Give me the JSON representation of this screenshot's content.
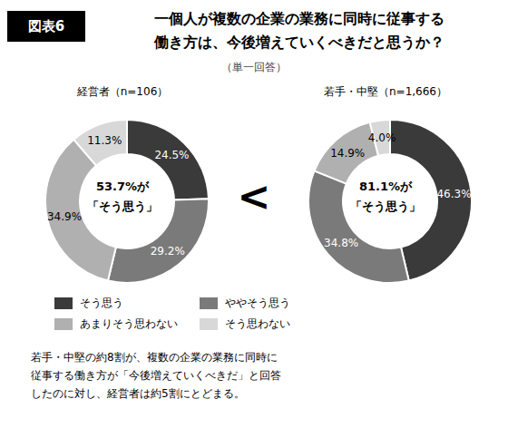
{
  "header_label": "図表6",
  "title": "一個人が複数の企業の業務に同時に従事する\n働き方は、今後増えていくべきだと思うか？",
  "subtitle": "（単一回答）",
  "symbol": "<",
  "note": "若手・中堅の約8割が、複数の企業の業務に同時に\n従事する働き方が「今後増えていくべきだ」と回答\nしたのに対し、経営者は約5割にとどまる。",
  "chart_data": [
    {
      "type": "pie",
      "title": "経営者（n=106）",
      "categories": [
        "そう思う",
        "ややそう思う",
        "あまりそう思わない",
        "そう思わない"
      ],
      "values": [
        24.5,
        29.2,
        34.9,
        11.3
      ],
      "value_labels": [
        "24.5%",
        "29.2%",
        "34.9%",
        "11.3%"
      ],
      "colors": [
        "#3a3a3a",
        "#7a7a7a",
        "#b0b0b0",
        "#d8d8d8"
      ],
      "annotations": [
        "53.7%が",
        "「そう思う」"
      ],
      "legend": "bottom"
    },
    {
      "type": "pie",
      "title": "若手・中堅（n=1,666）",
      "categories": [
        "そう思う",
        "ややそう思う",
        "あまりそう思わない",
        "そう思わない"
      ],
      "values": [
        46.3,
        34.8,
        14.9,
        4.0
      ],
      "value_labels": [
        "46.3%",
        "34.8%",
        "14.9%",
        "4.0%"
      ],
      "colors": [
        "#3a3a3a",
        "#7a7a7a",
        "#b0b0b0",
        "#d8d8d8"
      ],
      "annotations": [
        "81.1%が",
        "「そう思う」"
      ]
    }
  ]
}
